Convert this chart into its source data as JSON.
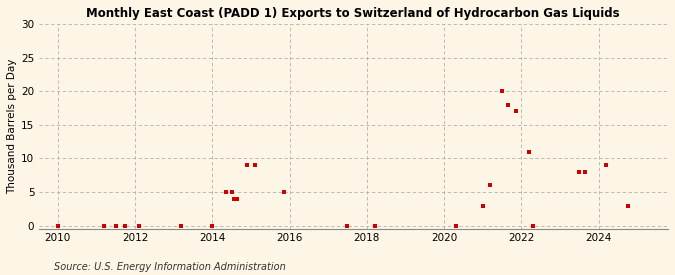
{
  "title": "Monthly East Coast (PADD 1) Exports to Switzerland of Hydrocarbon Gas Liquids",
  "ylabel": "Thousand Barrels per Day",
  "source": "Source: U.S. Energy Information Administration",
  "background_color": "#fdf5e6",
  "plot_bg_color": "#fdf5e6",
  "marker_color": "#cc0000",
  "marker_size": 12,
  "xlim": [
    2009.5,
    2025.8
  ],
  "ylim": [
    -0.5,
    30
  ],
  "yticks": [
    0,
    5,
    10,
    15,
    20,
    25,
    30
  ],
  "xticks": [
    2010,
    2012,
    2014,
    2016,
    2018,
    2020,
    2022,
    2024
  ],
  "data_points": [
    [
      2010.0,
      0
    ],
    [
      2011.2,
      0
    ],
    [
      2011.5,
      0
    ],
    [
      2011.75,
      0
    ],
    [
      2012.1,
      0
    ],
    [
      2013.2,
      0
    ],
    [
      2014.0,
      0
    ],
    [
      2014.35,
      5
    ],
    [
      2014.5,
      5
    ],
    [
      2014.55,
      4
    ],
    [
      2014.65,
      4
    ],
    [
      2014.9,
      9
    ],
    [
      2015.1,
      9
    ],
    [
      2015.85,
      5
    ],
    [
      2017.5,
      0
    ],
    [
      2018.2,
      0
    ],
    [
      2020.3,
      0
    ],
    [
      2021.0,
      3
    ],
    [
      2021.2,
      6
    ],
    [
      2021.5,
      20
    ],
    [
      2021.65,
      18
    ],
    [
      2021.85,
      17
    ],
    [
      2022.2,
      11
    ],
    [
      2022.3,
      0
    ],
    [
      2023.5,
      8
    ],
    [
      2023.65,
      8
    ],
    [
      2024.2,
      9
    ],
    [
      2024.75,
      3
    ]
  ]
}
